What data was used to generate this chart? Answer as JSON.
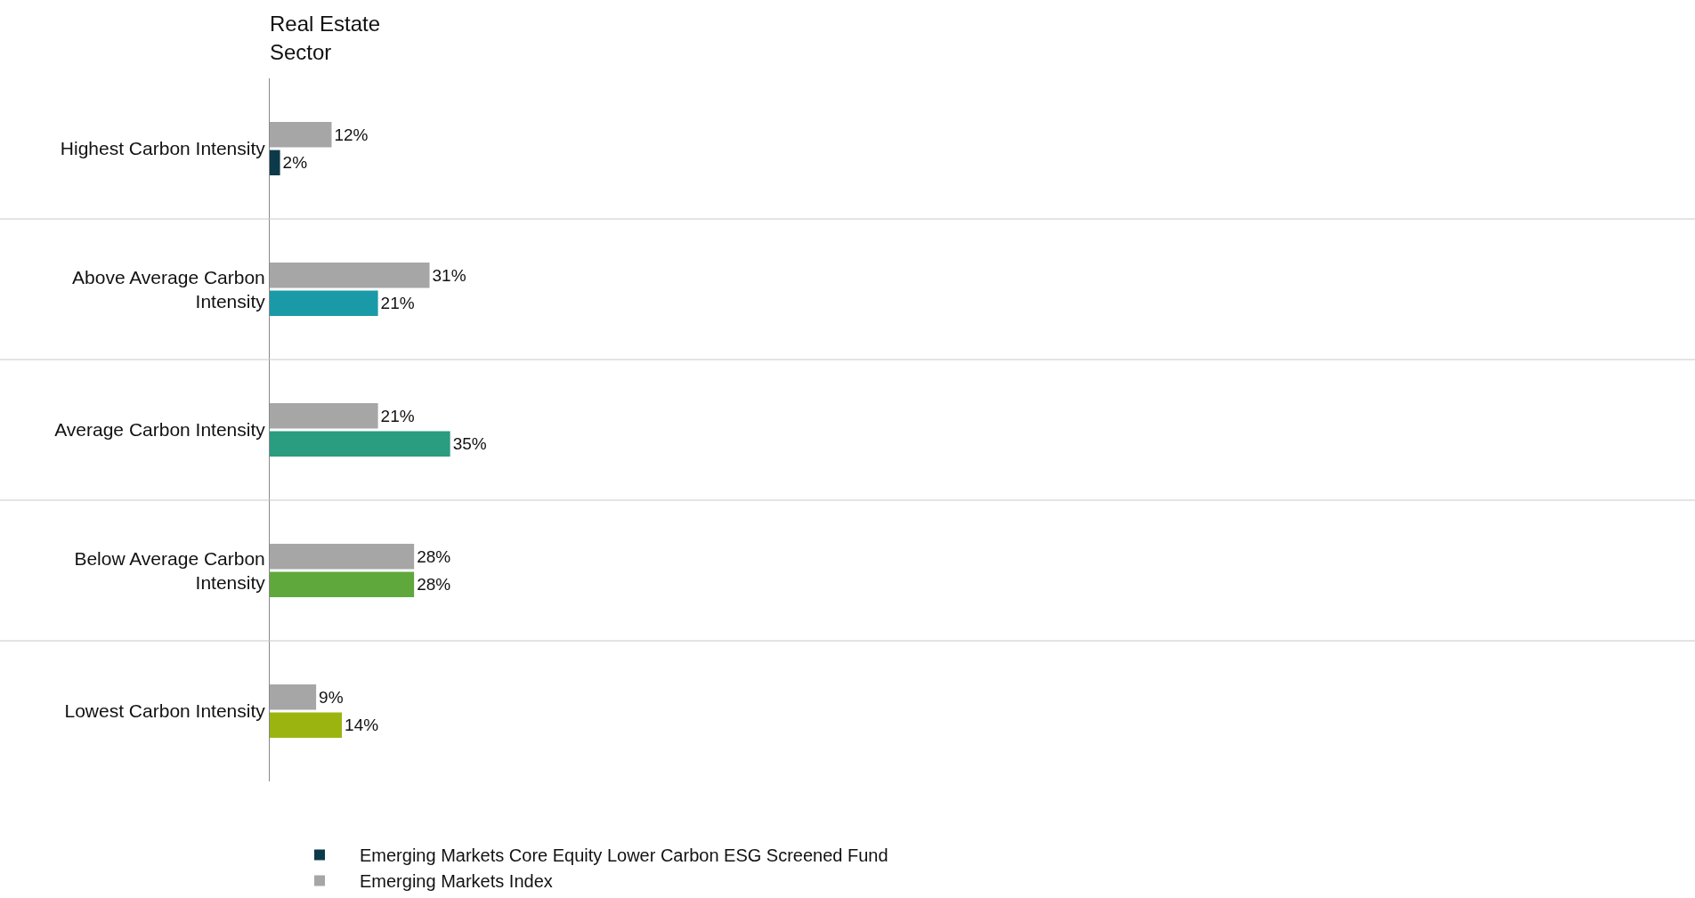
{
  "chart_data": {
    "type": "bar",
    "orientation": "horizontal",
    "title": "Real Estate Sector",
    "categories": [
      "Highest Carbon Intensity",
      "Above Average Carbon Intensity",
      "Average Carbon Intensity",
      "Below Average Carbon Intensity",
      "Lowest Carbon Intensity"
    ],
    "series": [
      {
        "name": "Emerging Markets Index",
        "color": "#a6a6a6",
        "values": [
          12,
          31,
          21,
          28,
          9
        ],
        "value_labels": [
          "12%",
          "31%",
          "21%",
          "28%",
          "9%"
        ]
      },
      {
        "name": "Emerging Markets Core Equity Lower Carbon ESG Screened Fund",
        "colors": [
          "#0d3a4a",
          "#1a9aa6",
          "#2a9c80",
          "#5fa83c",
          "#9cb40f"
        ],
        "values": [
          2,
          21,
          35,
          28,
          14
        ],
        "value_labels": [
          "2%",
          "21%",
          "35%",
          "28%",
          "14%"
        ]
      }
    ],
    "legend": "bottom"
  }
}
